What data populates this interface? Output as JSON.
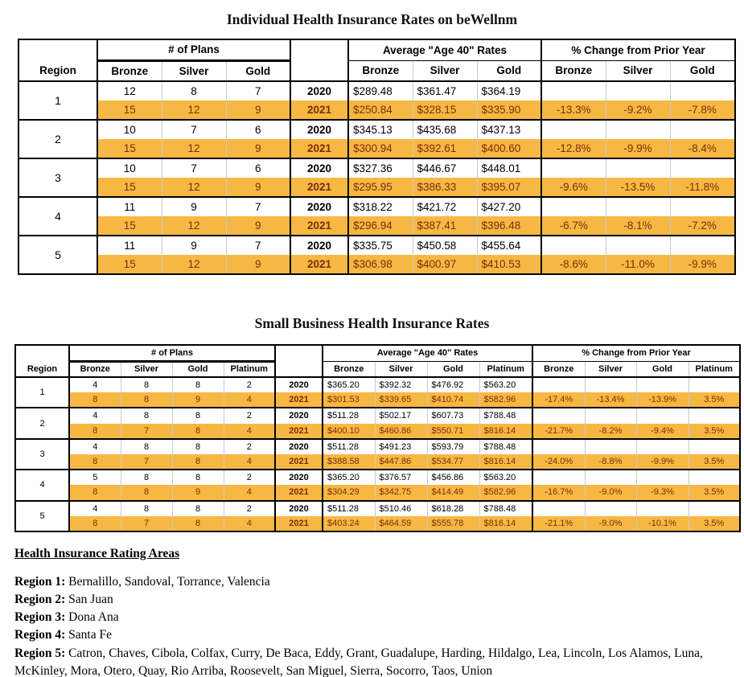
{
  "colors": {
    "highlight": "#F7B843",
    "highlight_text": "#7B2B09"
  },
  "table1": {
    "title": "Individual Health Insurance Rates on beWellnm",
    "region_header": "Region",
    "group_headers": {
      "plans": "# of Plans",
      "rates": "Average \"Age 40\" Rates",
      "change": "% Change from Prior Year"
    },
    "metals": [
      "Bronze",
      "Silver",
      "Gold"
    ],
    "regions": [
      {
        "region": "1",
        "rows": [
          {
            "year": "2020",
            "plans": [
              "12",
              "8",
              "7"
            ],
            "rates": [
              "$289.48",
              "$361.47",
              "$364.19"
            ],
            "change": [
              "",
              "",
              ""
            ],
            "highlight": false
          },
          {
            "year": "2021",
            "plans": [
              "15",
              "12",
              "9"
            ],
            "rates": [
              "$250.84",
              "$328.15",
              "$335.90"
            ],
            "change": [
              "-13.3%",
              "-9.2%",
              "-7.8%"
            ],
            "highlight": true
          }
        ]
      },
      {
        "region": "2",
        "rows": [
          {
            "year": "2020",
            "plans": [
              "10",
              "7",
              "6"
            ],
            "rates": [
              "$345.13",
              "$435.68",
              "$437.13"
            ],
            "change": [
              "",
              "",
              ""
            ],
            "highlight": false
          },
          {
            "year": "2021",
            "plans": [
              "15",
              "12",
              "9"
            ],
            "rates": [
              "$300.94",
              "$392.61",
              "$400.60"
            ],
            "change": [
              "-12.8%",
              "-9.9%",
              "-8.4%"
            ],
            "highlight": true
          }
        ]
      },
      {
        "region": "3",
        "rows": [
          {
            "year": "2020",
            "plans": [
              "10",
              "7",
              "6"
            ],
            "rates": [
              "$327.36",
              "$446.67",
              "$448.01"
            ],
            "change": [
              "",
              "",
              ""
            ],
            "highlight": false
          },
          {
            "year": "2021",
            "plans": [
              "15",
              "12",
              "9"
            ],
            "rates": [
              "$295.95",
              "$386.33",
              "$395.07"
            ],
            "change": [
              "-9.6%",
              "-13.5%",
              "-11.8%"
            ],
            "highlight": true
          }
        ]
      },
      {
        "region": "4",
        "rows": [
          {
            "year": "2020",
            "plans": [
              "11",
              "9",
              "7"
            ],
            "rates": [
              "$318.22",
              "$421.72",
              "$427.20"
            ],
            "change": [
              "",
              "",
              ""
            ],
            "highlight": false
          },
          {
            "year": "2021",
            "plans": [
              "15",
              "12",
              "9"
            ],
            "rates": [
              "$296.94",
              "$387.41",
              "$396.48"
            ],
            "change": [
              "-6.7%",
              "-8.1%",
              "-7.2%"
            ],
            "highlight": true
          }
        ]
      },
      {
        "region": "5",
        "rows": [
          {
            "year": "2020",
            "plans": [
              "11",
              "9",
              "7"
            ],
            "rates": [
              "$335.75",
              "$450.58",
              "$455.64"
            ],
            "change": [
              "",
              "",
              ""
            ],
            "highlight": false
          },
          {
            "year": "2021",
            "plans": [
              "15",
              "12",
              "9"
            ],
            "rates": [
              "$306.98",
              "$400.97",
              "$410.53"
            ],
            "change": [
              "-8.6%",
              "-11.0%",
              "-9.9%"
            ],
            "highlight": true
          }
        ]
      }
    ]
  },
  "table2": {
    "title": "Small Business Health Insurance Rates",
    "region_header": "Region",
    "group_headers": {
      "plans": "# of Plans",
      "rates": "Average \"Age 40\" Rates",
      "change": "% Change from Prior Year"
    },
    "metals": [
      "Bronze",
      "Silver",
      "Gold",
      "Platinum"
    ],
    "regions": [
      {
        "region": "1",
        "rows": [
          {
            "year": "2020",
            "plans": [
              "4",
              "8",
              "8",
              "2"
            ],
            "rates": [
              "$365.20",
              "$392.32",
              "$476.92",
              "$563.20"
            ],
            "change": [
              "",
              "",
              "",
              ""
            ],
            "highlight": false
          },
          {
            "year": "2021",
            "plans": [
              "8",
              "8",
              "9",
              "4"
            ],
            "rates": [
              "$301.53",
              "$339.65",
              "$410.74",
              "$582.96"
            ],
            "change": [
              "-17.4%",
              "-13.4%",
              "-13.9%",
              "3.5%"
            ],
            "highlight": true
          }
        ]
      },
      {
        "region": "2",
        "rows": [
          {
            "year": "2020",
            "plans": [
              "4",
              "8",
              "8",
              "2"
            ],
            "rates": [
              "$511.28",
              "$502.17",
              "$607.73",
              "$788.48"
            ],
            "change": [
              "",
              "",
              "",
              ""
            ],
            "highlight": false
          },
          {
            "year": "2021",
            "plans": [
              "8",
              "7",
              "8",
              "4"
            ],
            "rates": [
              "$400.10",
              "$460.86",
              "$550.71",
              "$816.14"
            ],
            "change": [
              "-21.7%",
              "-8.2%",
              "-9.4%",
              "3.5%"
            ],
            "highlight": true
          }
        ]
      },
      {
        "region": "3",
        "rows": [
          {
            "year": "2020",
            "plans": [
              "4",
              "8",
              "8",
              "2"
            ],
            "rates": [
              "$511.28",
              "$491.23",
              "$593.79",
              "$788.48"
            ],
            "change": [
              "",
              "",
              "",
              ""
            ],
            "highlight": false
          },
          {
            "year": "2021",
            "plans": [
              "8",
              "7",
              "8",
              "4"
            ],
            "rates": [
              "$388.58",
              "$447.86",
              "$534.77",
              "$816.14"
            ],
            "change": [
              "-24.0%",
              "-8.8%",
              "-9.9%",
              "3.5%"
            ],
            "highlight": true
          }
        ]
      },
      {
        "region": "4",
        "rows": [
          {
            "year": "2020",
            "plans": [
              "5",
              "8",
              "8",
              "2"
            ],
            "rates": [
              "$365.20",
              "$376.57",
              "$456.86",
              "$563.20"
            ],
            "change": [
              "",
              "",
              "",
              ""
            ],
            "highlight": false
          },
          {
            "year": "2021",
            "plans": [
              "8",
              "8",
              "9",
              "4"
            ],
            "rates": [
              "$304.29",
              "$342.75",
              "$414.49",
              "$582.96"
            ],
            "change": [
              "-16.7%",
              "-9.0%",
              "-9.3%",
              "3.5%"
            ],
            "highlight": true
          }
        ]
      },
      {
        "region": "5",
        "rows": [
          {
            "year": "2020",
            "plans": [
              "4",
              "8",
              "8",
              "2"
            ],
            "rates": [
              "$511.28",
              "$510.46",
              "$618.28",
              "$788.48"
            ],
            "change": [
              "",
              "",
              "",
              ""
            ],
            "highlight": false
          },
          {
            "year": "2021",
            "plans": [
              "8",
              "7",
              "8",
              "4"
            ],
            "rates": [
              "$403.24",
              "$464.59",
              "$555.78",
              "$816.14"
            ],
            "change": [
              "-21.1%",
              "-9.0%",
              "-10.1%",
              "3.5%"
            ],
            "highlight": true
          }
        ]
      }
    ]
  },
  "footer": {
    "heading": "Health Insurance Rating Areas",
    "entries": [
      {
        "label": "Region 1:",
        "text": "Bernalillo, Sandoval, Torrance, Valencia"
      },
      {
        "label": "Region 2:",
        "text": "San Juan"
      },
      {
        "label": "Region 3:",
        "text": "Dona Ana"
      },
      {
        "label": "Region 4:",
        "text": "Santa Fe"
      },
      {
        "label": "Region 5:",
        "text": "Catron, Chaves, Cibola, Colfax, Curry, De Baca, Eddy, Grant, Guadalupe, Harding, Hildalgo, Lea, Lincoln, Los Alamos, Luna, McKinley, Mora, Otero, Quay, Rio Arriba, Roosevelt, San Miguel, Sierra, Socorro, Taos, Union"
      }
    ]
  }
}
